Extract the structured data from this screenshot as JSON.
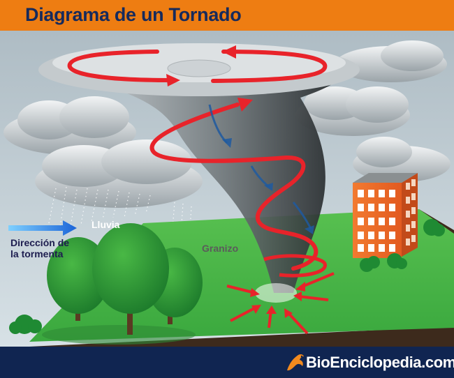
{
  "header": {
    "title": "Diagrama de un Tornado"
  },
  "labels": {
    "rain": "Lluvia",
    "hail": "Granizo",
    "storm_direction": [
      "Dirección de",
      "la tormenta"
    ]
  },
  "footer": {
    "brand": "BioEnciclopedia.com",
    "brand_icon": "dragon-logo-icon"
  },
  "colors": {
    "header": "#ee7d12",
    "title": "#162a5c",
    "footer": "#102551",
    "spiral": "#e8232a",
    "ground": "#3fb74a",
    "building": "#f26b2b",
    "direction_arrow": "#2d8ff0"
  }
}
